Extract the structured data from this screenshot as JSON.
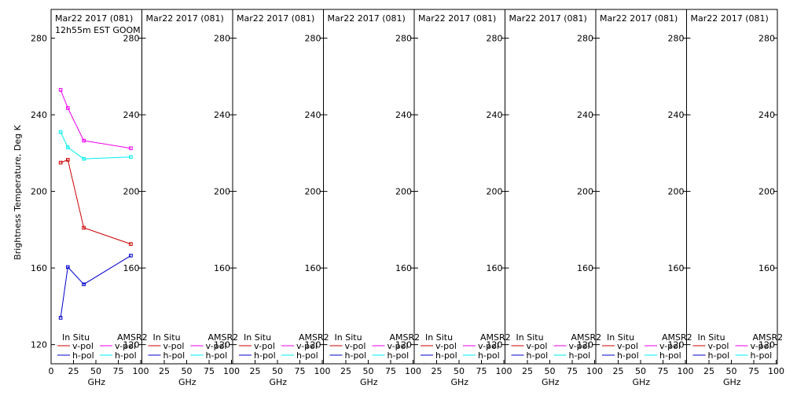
{
  "figure": {
    "ylabel": "Brightness Temperature, Deg K",
    "colors": {
      "insitu_v": "#cc0000",
      "insitu_h": "#0000cc",
      "amsr2_v": "#ee00ee",
      "amsr2_h": "#00eeee",
      "frame": "#000000"
    }
  },
  "chart_data": [
    {
      "type": "line",
      "title": "Mar22 2017 (081)",
      "subtitle": "12h55m EST GOOM",
      "xlabel": "GHz",
      "ylabel": "Brightness Temperature, Deg K",
      "xlim": [
        0,
        100
      ],
      "ylim": [
        110,
        295
      ],
      "xticks": [
        0,
        25,
        50,
        75,
        100
      ],
      "yticks": [
        120,
        160,
        200,
        240,
        280
      ],
      "grid": false,
      "legend": {
        "placement": "bottom",
        "group1": "In Situ",
        "group2": "AMSR2",
        "v_label": "v-pol",
        "h_label": "h-pol"
      },
      "series": [
        {
          "name": "In Situ v-pol",
          "group": "In Situ",
          "pol": "v",
          "x": [
            10.65,
            18.7,
            36.5,
            89.0
          ],
          "y": [
            215,
            216.5,
            181,
            172.5
          ]
        },
        {
          "name": "In Situ h-pol",
          "group": "In Situ",
          "pol": "h",
          "x": [
            10.65,
            18.7,
            36.5,
            89.0
          ],
          "y": [
            134,
            160.5,
            151.5,
            166.5
          ]
        },
        {
          "name": "AMSR2 v-pol",
          "group": "AMSR2",
          "pol": "v",
          "x": [
            10.65,
            18.7,
            36.5,
            89.0
          ],
          "y": [
            253,
            243.5,
            226.5,
            222.5
          ]
        },
        {
          "name": "AMSR2 h-pol",
          "group": "AMSR2",
          "pol": "h",
          "x": [
            10.65,
            18.7,
            36.5,
            89.0
          ],
          "y": [
            231,
            223,
            217,
            218
          ]
        }
      ]
    },
    {
      "type": "line",
      "title": "Mar22 2017 (081)",
      "subtitle": "",
      "xlabel": "GHz",
      "xlim": [
        0,
        100
      ],
      "ylim": [
        110,
        295
      ],
      "xticks": [
        0,
        25,
        50,
        75,
        100
      ],
      "yticks": [
        120,
        160,
        200,
        240,
        280
      ],
      "grid": false,
      "legend": {
        "placement": "bottom",
        "group1": "In Situ",
        "group2": "AMSR2",
        "v_label": "v-pol",
        "h_label": "h-pol"
      },
      "series": []
    },
    {
      "type": "line",
      "title": "Mar22 2017 (081)",
      "subtitle": "",
      "xlabel": "GHz",
      "xlim": [
        0,
        100
      ],
      "ylim": [
        110,
        295
      ],
      "xticks": [
        0,
        25,
        50,
        75,
        100
      ],
      "yticks": [
        120,
        160,
        200,
        240,
        280
      ],
      "grid": false,
      "legend": {
        "placement": "bottom",
        "group1": "In Situ",
        "group2": "AMSR2",
        "v_label": "v-pol",
        "h_label": "h-pol"
      },
      "series": []
    },
    {
      "type": "line",
      "title": "Mar22 2017 (081)",
      "subtitle": "",
      "xlabel": "GHz",
      "xlim": [
        0,
        100
      ],
      "ylim": [
        110,
        295
      ],
      "xticks": [
        0,
        25,
        50,
        75,
        100
      ],
      "yticks": [
        120,
        160,
        200,
        240,
        280
      ],
      "grid": false,
      "legend": {
        "placement": "bottom",
        "group1": "In Situ",
        "group2": "AMSR2",
        "v_label": "v-pol",
        "h_label": "h-pol"
      },
      "series": []
    },
    {
      "type": "line",
      "title": "Mar22 2017 (081)",
      "subtitle": "",
      "xlabel": "GHz",
      "xlim": [
        0,
        100
      ],
      "ylim": [
        110,
        295
      ],
      "xticks": [
        0,
        25,
        50,
        75,
        100
      ],
      "yticks": [
        120,
        160,
        200,
        240,
        280
      ],
      "grid": false,
      "legend": {
        "placement": "bottom",
        "group1": "In Situ",
        "group2": "AMSR2",
        "v_label": "v-pol",
        "h_label": "h-pol"
      },
      "series": []
    },
    {
      "type": "line",
      "title": "Mar22 2017 (081)",
      "subtitle": "",
      "xlabel": "GHz",
      "xlim": [
        0,
        100
      ],
      "ylim": [
        110,
        295
      ],
      "xticks": [
        0,
        25,
        50,
        75,
        100
      ],
      "yticks": [
        120,
        160,
        200,
        240,
        280
      ],
      "grid": false,
      "legend": {
        "placement": "bottom",
        "group1": "In Situ",
        "group2": "AMSR2",
        "v_label": "v-pol",
        "h_label": "h-pol"
      },
      "series": []
    },
    {
      "type": "line",
      "title": "Mar22 2017 (081)",
      "subtitle": "",
      "xlabel": "GHz",
      "xlim": [
        0,
        100
      ],
      "ylim": [
        110,
        295
      ],
      "xticks": [
        0,
        25,
        50,
        75,
        100
      ],
      "yticks": [
        120,
        160,
        200,
        240,
        280
      ],
      "grid": false,
      "legend": {
        "placement": "bottom",
        "group1": "In Situ",
        "group2": "AMSR2",
        "v_label": "v-pol",
        "h_label": "h-pol"
      },
      "series": []
    },
    {
      "type": "line",
      "title": "Mar22 2017 (081)",
      "subtitle": "",
      "xlabel": "GHz",
      "xlim": [
        0,
        100
      ],
      "ylim": [
        110,
        295
      ],
      "xticks": [
        0,
        25,
        50,
        75,
        100
      ],
      "yticks": [
        120,
        160,
        200,
        240,
        280
      ],
      "grid": false,
      "legend": {
        "placement": "bottom",
        "group1": "In Situ",
        "group2": "AMSR2",
        "v_label": "v-pol",
        "h_label": "h-pol"
      },
      "series": []
    }
  ]
}
